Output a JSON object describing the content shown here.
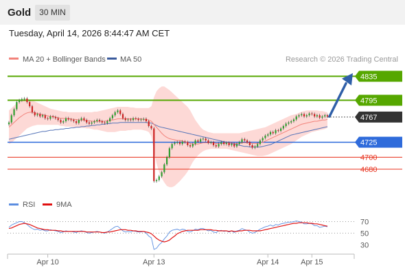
{
  "header": {
    "title": "Gold",
    "timeframe": "30 MIN"
  },
  "datetime": "Tuesday, April 14, 2026 8:44:47 AM CET",
  "legend": {
    "ma20": "MA 20 + Bollinger Bands",
    "ma50": "MA 50",
    "copyright": "Research © 2026 Trading Central",
    "rsi": "RSI",
    "ma9": "9MA"
  },
  "colors": {
    "green": "#56a700",
    "blue": "#2f6bdb",
    "red": "#e8321e",
    "current": "#333333",
    "candle_up": "#2e9e2e",
    "candle_down": "#cc2222",
    "bb_fill": "#fdd9d6",
    "ma20": "#f2827a",
    "ma50": "#5574b8",
    "rsi": "#5b8de0",
    "ma9": "#e01010",
    "arrow": "#2f5fa8"
  },
  "chart_data": [
    {
      "type": "candlestick",
      "title": "Gold",
      "timeframe": "30 MIN",
      "x_ticks": [
        "Apr 10",
        "Apr 13",
        "Apr 14",
        "Apr 15"
      ],
      "ylim": [
        4640,
        4848
      ],
      "levels": [
        {
          "value": 4835,
          "label": "4835",
          "kind": "resistance",
          "color": "green"
        },
        {
          "value": 4795,
          "label": "4795",
          "kind": "resistance",
          "color": "green"
        },
        {
          "value": 4767,
          "label": "4767",
          "kind": "current",
          "color": "current"
        },
        {
          "value": 4725,
          "label": "4725",
          "kind": "pivot",
          "color": "blue"
        },
        {
          "value": 4700,
          "label": "4700",
          "kind": "support",
          "color": "red"
        },
        {
          "value": 4680,
          "label": "4680",
          "kind": "support",
          "color": "red"
        }
      ],
      "projection": {
        "from": 4768,
        "to": 4830
      },
      "close": [
        4758,
        4770,
        4780,
        4792,
        4795,
        4797,
        4798,
        4792,
        4785,
        4775,
        4770,
        4772,
        4768,
        4770,
        4765,
        4764,
        4768,
        4767,
        4765,
        4762,
        4758,
        4760,
        4765,
        4763,
        4762,
        4760,
        4757,
        4762,
        4765,
        4762,
        4758,
        4756,
        4758,
        4760,
        4762,
        4760,
        4758,
        4757,
        4760,
        4765,
        4770,
        4775,
        4778,
        4772,
        4765,
        4762,
        4763,
        4762,
        4765,
        4764,
        4762,
        4763,
        4764,
        4760,
        4752,
        4748,
        4660,
        4662,
        4668,
        4675,
        4688,
        4700,
        4715,
        4722,
        4724,
        4725,
        4722,
        4726,
        4725,
        4720,
        4718,
        4722,
        4728,
        4726,
        4730,
        4731,
        4728,
        4724,
        4725,
        4720,
        4718,
        4722,
        4725,
        4722,
        4724,
        4720,
        4722,
        4718,
        4722,
        4725,
        4730,
        4728,
        4725,
        4720,
        4716,
        4718,
        4722,
        4728,
        4732,
        4736,
        4738,
        4742,
        4740,
        4745,
        4744,
        4748,
        4752,
        4756,
        4758,
        4760,
        4763,
        4768,
        4770,
        4772,
        4768,
        4770,
        4773,
        4772,
        4768,
        4770,
        4766,
        4768,
        4770,
        4768
      ],
      "ma20": [
        4750,
        4754,
        4758,
        4762,
        4766,
        4769,
        4772,
        4774,
        4775,
        4775,
        4774,
        4773,
        4772,
        4771,
        4770,
        4769,
        4768,
        4768,
        4767,
        4766,
        4765,
        4765,
        4764,
        4764,
        4764,
        4763,
        4763,
        4762,
        4762,
        4762,
        4761,
        4761,
        4760,
        4760,
        4760,
        4760,
        4760,
        4760,
        4761,
        4762,
        4762,
        4763,
        4764,
        4764,
        4764,
        4764,
        4764,
        4764,
        4764,
        4764,
        4764,
        4764,
        4763,
        4763,
        4762,
        4760,
        4755,
        4750,
        4745,
        4740,
        4736,
        4733,
        4731,
        4730,
        4729,
        4728,
        4728,
        4727,
        4726,
        4725,
        4723,
        4722,
        4722,
        4722,
        4723,
        4724,
        4724,
        4724,
        4724,
        4724,
        4723,
        4723,
        4723,
        4723,
        4724,
        4724,
        4724,
        4723,
        4723,
        4723,
        4724,
        4724,
        4724,
        4724,
        4723,
        4723,
        4723,
        4724,
        4725,
        4727,
        4729,
        4731,
        4733,
        4735,
        4737,
        4739,
        4741,
        4743,
        4745,
        4747,
        4749,
        4751,
        4753,
        4755,
        4756,
        4757,
        4758,
        4759,
        4760,
        4760,
        4761,
        4762,
        4762,
        4763
      ],
      "bb_upper": [
        4778,
        4782,
        4786,
        4790,
        4794,
        4796,
        4797,
        4797,
        4796,
        4795,
        4793,
        4791,
        4789,
        4787,
        4785,
        4783,
        4781,
        4780,
        4779,
        4778,
        4777,
        4776,
        4776,
        4775,
        4775,
        4775,
        4775,
        4775,
        4775,
        4775,
        4775,
        4775,
        4775,
        4776,
        4776,
        4777,
        4778,
        4779,
        4780,
        4781,
        4782,
        4783,
        4784,
        4784,
        4784,
        4784,
        4784,
        4783,
        4783,
        4782,
        4782,
        4782,
        4782,
        4782,
        4782,
        4785,
        4800,
        4810,
        4815,
        4818,
        4818,
        4815,
        4812,
        4808,
        4804,
        4800,
        4796,
        4792,
        4788,
        4784,
        4778,
        4770,
        4762,
        4756,
        4750,
        4746,
        4744,
        4742,
        4741,
        4740,
        4740,
        4740,
        4740,
        4740,
        4740,
        4740,
        4740,
        4740,
        4740,
        4740,
        4741,
        4742,
        4743,
        4744,
        4745,
        4746,
        4747,
        4748,
        4749,
        4750,
        4752,
        4754,
        4756,
        4758,
        4760,
        4762,
        4764,
        4766,
        4768,
        4770,
        4771,
        4772,
        4774,
        4776,
        4777,
        4778,
        4778,
        4778,
        4778,
        4778,
        4777,
        4777,
        4776,
        4775
      ],
      "bb_lower": [
        4722,
        4724,
        4728,
        4732,
        4736,
        4740,
        4744,
        4748,
        4750,
        4752,
        4753,
        4754,
        4754,
        4754,
        4754,
        4754,
        4754,
        4754,
        4754,
        4754,
        4752,
        4752,
        4751,
        4751,
        4751,
        4750,
        4750,
        4749,
        4749,
        4749,
        4748,
        4748,
        4747,
        4746,
        4746,
        4745,
        4744,
        4743,
        4742,
        4742,
        4742,
        4742,
        4743,
        4744,
        4744,
        4744,
        4745,
        4745,
        4746,
        4746,
        4746,
        4746,
        4745,
        4744,
        4742,
        4735,
        4710,
        4690,
        4675,
        4665,
        4658,
        4652,
        4650,
        4650,
        4652,
        4656,
        4660,
        4665,
        4670,
        4676,
        4684,
        4692,
        4698,
        4703,
        4707,
        4710,
        4712,
        4713,
        4714,
        4714,
        4714,
        4714,
        4714,
        4714,
        4714,
        4713,
        4712,
        4711,
        4710,
        4709,
        4708,
        4707,
        4706,
        4705,
        4704,
        4703,
        4702,
        4702,
        4702,
        4703,
        4704,
        4706,
        4708,
        4710,
        4712,
        4714,
        4716,
        4718,
        4720,
        4722,
        4725,
        4728,
        4731,
        4734,
        4736,
        4738,
        4740,
        4742,
        4743,
        4744,
        4745,
        4746,
        4747,
        4749
      ],
      "ma50": [
        4730,
        4731,
        4732,
        4733,
        4734,
        4735,
        4736,
        4737,
        4738,
        4739,
        4740,
        4741,
        4742,
        4743,
        4743,
        4744,
        4745,
        4745,
        4746,
        4746,
        4747,
        4747,
        4748,
        4748,
        4749,
        4749,
        4750,
        4750,
        4751,
        4751,
        4752,
        4752,
        4753,
        4753,
        4754,
        4754,
        4755,
        4755,
        4756,
        4756,
        4757,
        4757,
        4757,
        4758,
        4758,
        4758,
        4758,
        4758,
        4758,
        4758,
        4758,
        4758,
        4758,
        4758,
        4757,
        4757,
        4755,
        4753,
        4751,
        4750,
        4749,
        4748,
        4747,
        4746,
        4745,
        4744,
        4743,
        4742,
        4741,
        4740,
        4739,
        4738,
        4737,
        4736,
        4735,
        4734,
        4733,
        4732,
        4731,
        4730,
        4729,
        4728,
        4727,
        4726,
        4725,
        4724,
        4723,
        4722,
        4721,
        4720,
        4719,
        4718,
        4718,
        4717,
        4717,
        4717,
        4717,
        4717,
        4718,
        4719,
        4720,
        4721,
        4723,
        4725,
        4727,
        4729,
        4731,
        4733,
        4735,
        4737,
        4738,
        4739,
        4740,
        4741,
        4742,
        4743,
        4744,
        4745,
        4746,
        4747,
        4748,
        4749,
        4750,
        4751
      ]
    },
    {
      "type": "line",
      "title": "RSI",
      "ylim": [
        15,
        80
      ],
      "y_ticks": [
        70,
        50,
        30
      ],
      "series": [
        {
          "name": "RSI",
          "color": "rsi",
          "values": [
            60,
            64,
            66,
            68,
            70,
            70,
            68,
            65,
            61,
            58,
            56,
            57,
            55,
            56,
            54,
            54,
            56,
            55,
            54,
            53,
            51,
            52,
            54,
            53,
            53,
            52,
            51,
            53,
            54,
            53,
            51,
            50,
            51,
            52,
            53,
            52,
            51,
            50,
            52,
            55,
            58,
            61,
            62,
            58,
            54,
            52,
            53,
            52,
            54,
            53,
            52,
            52,
            53,
            50,
            45,
            42,
            22,
            24,
            30,
            34,
            40,
            45,
            52,
            55,
            56,
            57,
            55,
            57,
            56,
            53,
            52,
            54,
            57,
            56,
            58,
            58,
            56,
            54,
            55,
            52,
            51,
            54,
            55,
            53,
            54,
            52,
            54,
            51,
            54,
            55,
            58,
            56,
            55,
            52,
            50,
            51,
            54,
            57,
            59,
            61,
            62,
            64,
            62,
            65,
            64,
            66,
            67,
            68,
            69,
            69,
            70,
            71,
            70,
            69,
            66,
            66,
            67,
            66,
            63,
            63,
            60,
            61,
            62,
            61
          ]
        },
        {
          "name": "9MA",
          "color": "ma9",
          "values": [
            58,
            59,
            61,
            63,
            65,
            66,
            67,
            66,
            65,
            63,
            61,
            59,
            58,
            57,
            56,
            56,
            55,
            55,
            55,
            54,
            54,
            53,
            53,
            53,
            53,
            53,
            53,
            53,
            53,
            53,
            52,
            52,
            52,
            52,
            52,
            52,
            51,
            51,
            52,
            52,
            53,
            54,
            55,
            56,
            56,
            56,
            55,
            55,
            54,
            54,
            53,
            53,
            53,
            52,
            51,
            49,
            45,
            41,
            38,
            36,
            35,
            36,
            38,
            42,
            45,
            49,
            51,
            53,
            54,
            55,
            55,
            55,
            55,
            55,
            56,
            56,
            56,
            56,
            56,
            55,
            55,
            54,
            54,
            54,
            54,
            53,
            54,
            53,
            53,
            54,
            54,
            55,
            55,
            55,
            54,
            54,
            54,
            54,
            55,
            56,
            57,
            58,
            59,
            60,
            61,
            62,
            63,
            64,
            65,
            66,
            67,
            67,
            68,
            68,
            68,
            68,
            67,
            67,
            66,
            66,
            65,
            64,
            63,
            62
          ]
        }
      ]
    }
  ]
}
